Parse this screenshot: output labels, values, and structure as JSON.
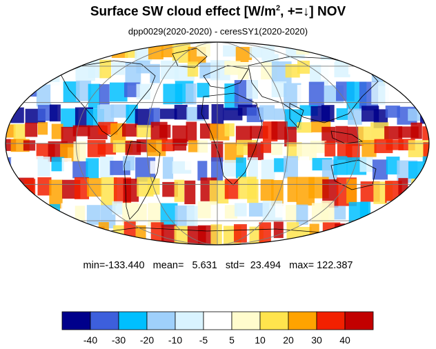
{
  "title": {
    "main": "Surface SW cloud effect [W/m",
    "superscript": "2",
    "suffix": ", +=↓]  NOV"
  },
  "subtitle": "dpp0029(2020-2020) - ceresSY1(2020-2020)",
  "stats": {
    "text": "min=-133.440   mean=   5.631   std=  23.494   max= 122.387",
    "min": -133.44,
    "mean": 5.631,
    "std": 23.494,
    "max": 122.387
  },
  "projection": "mollweide",
  "colorbar": {
    "colors": [
      "#00008b",
      "#3d5fdc",
      "#00bfff",
      "#9fd0fb",
      "#d9f3ff",
      "#ffffff",
      "#fffccd",
      "#ffe44d",
      "#ffa300",
      "#f22000",
      "#c20000"
    ],
    "tick_labels": [
      "-40",
      "-30",
      "-20",
      "-10",
      "-5",
      "5",
      "10",
      "20",
      "30",
      "40"
    ]
  }
}
